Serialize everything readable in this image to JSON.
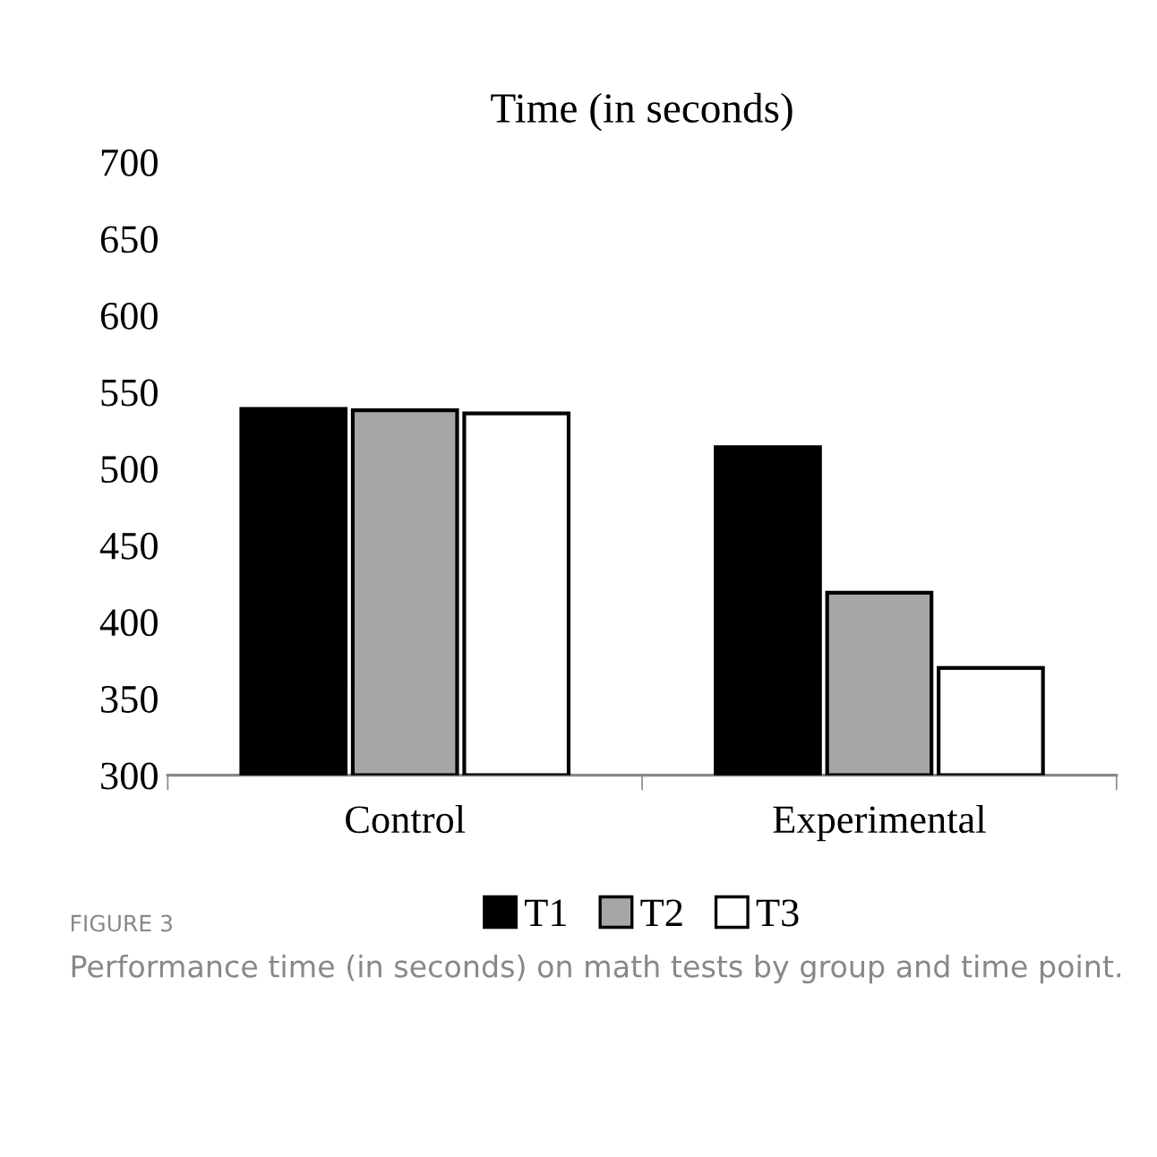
{
  "chart_data": {
    "type": "bar",
    "title": "Time (in seconds)",
    "categories": [
      "Control",
      "Experimental"
    ],
    "series": [
      {
        "name": "T1",
        "color": "#000000",
        "values": [
          539,
          514
        ]
      },
      {
        "name": "T2",
        "color": "#a6a6a6",
        "values": [
          538,
          419
        ]
      },
      {
        "name": "T3",
        "color": "#ffffff",
        "values": [
          536,
          370
        ]
      }
    ],
    "ylim": [
      300,
      700
    ],
    "yticks": [
      300,
      350,
      400,
      450,
      500,
      550,
      600,
      650,
      700
    ],
    "grid": false,
    "legend": "bottom",
    "annotations": [
      "FIGURE 3",
      "Performance time (in seconds) on math tests by group and time point."
    ]
  }
}
